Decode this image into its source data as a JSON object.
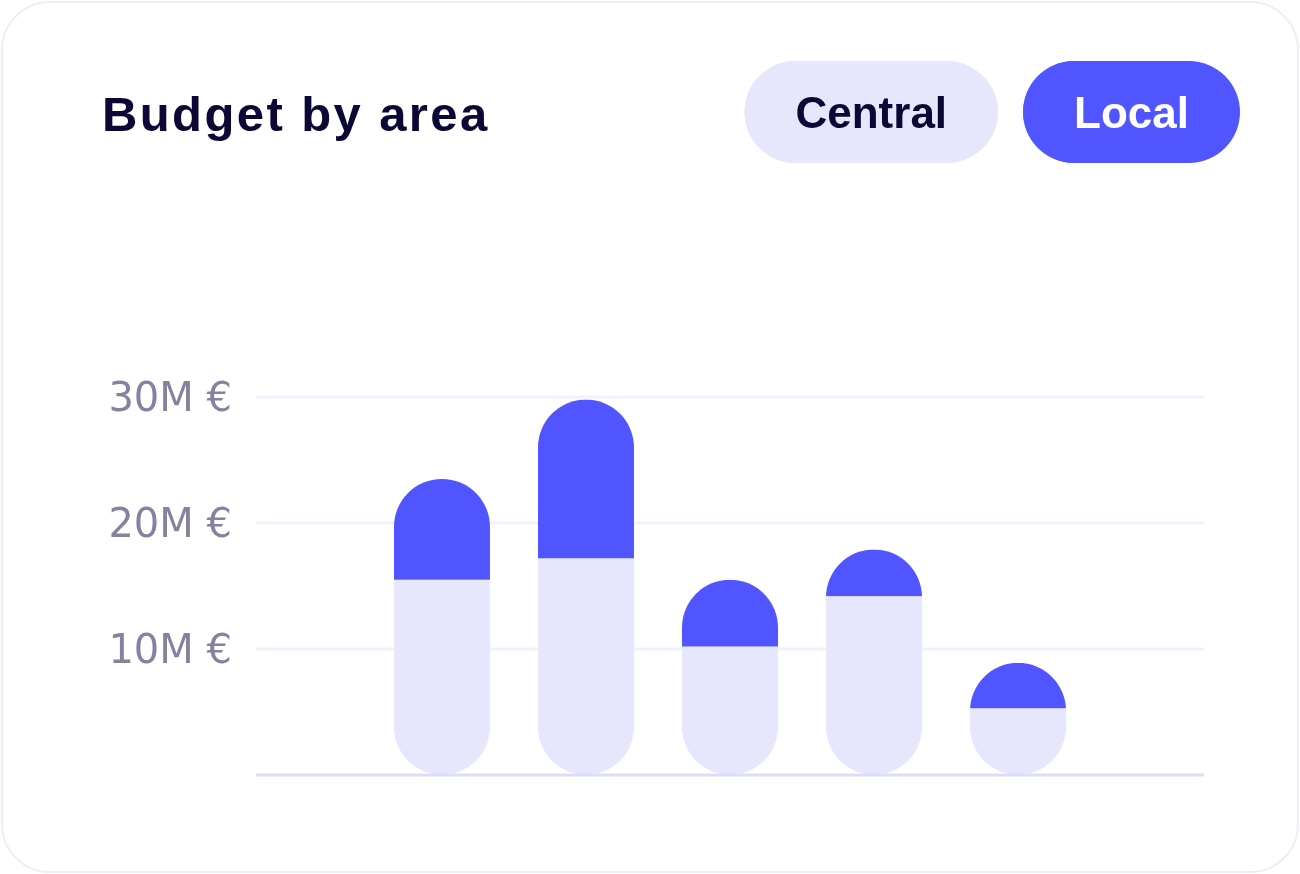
{
  "chart_data": {
    "type": "bar",
    "title": "Budget by area",
    "categories": [
      null,
      null,
      null,
      null,
      null
    ],
    "stacked": true,
    "series": [
      {
        "name": "Central",
        "color": "#e6e6fd",
        "values": [
          15.5,
          17.2,
          10.2,
          14.2,
          5.3
        ]
      },
      {
        "name": "Local",
        "color": "#5055ff",
        "values": [
          8.0,
          12.6,
          5.3,
          3.7,
          3.6
        ]
      }
    ],
    "ylim": [
      0,
      30
    ],
    "yticks": [
      {
        "value": 10,
        "label": "10M €"
      },
      {
        "value": 20,
        "label": "20M €"
      },
      {
        "value": 30,
        "label": "30M €"
      }
    ],
    "grid": "y",
    "legend": "top right",
    "tick_labels": "y"
  }
}
